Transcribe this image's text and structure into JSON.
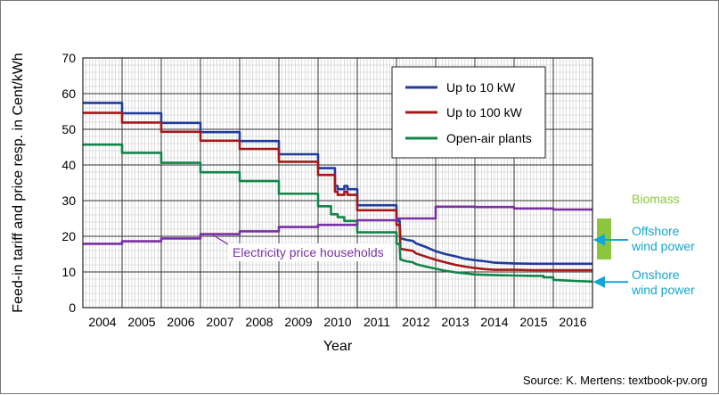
{
  "chart_data": {
    "type": "line",
    "title": "",
    "xlabel": "Year",
    "ylabel": "Feed-in tariff and price resp. in Cent/kWh",
    "ylim": [
      0,
      70
    ],
    "yticks": [
      0,
      10,
      20,
      30,
      40,
      50,
      60,
      70
    ],
    "xlim": [
      2003.5,
      2016.5
    ],
    "xtick_labels": [
      "2004",
      "2005",
      "2006",
      "2007",
      "2008",
      "2009",
      "2010",
      "2011",
      "2012",
      "2013",
      "2014",
      "2015",
      "2016"
    ],
    "grid": true,
    "legend_position": "top-right",
    "series": [
      {
        "name": "Up to 10 kW",
        "color": "#1f3b9c",
        "x": [
          2003.5,
          2004.5,
          2004.5,
          2005.5,
          2005.5,
          2006.5,
          2006.5,
          2007.5,
          2007.5,
          2008.5,
          2008.5,
          2009.5,
          2009.5,
          2009.93,
          2009.93,
          2010.0,
          2010.0,
          2010.17,
          2010.17,
          2010.25,
          2010.25,
          2010.5,
          2010.5,
          2011.5,
          2011.5,
          2011.58,
          2011.6,
          2011.75,
          2011.92,
          2012.0,
          2012.25,
          2012.5,
          2012.75,
          2013.0,
          2013.25,
          2013.5,
          2013.75,
          2014.0,
          2014.5,
          2015.0,
          2016.5
        ],
        "y": [
          57.4,
          57.4,
          54.5,
          54.5,
          51.8,
          51.8,
          49.2,
          49.2,
          46.7,
          46.7,
          43.0,
          43.0,
          39.1,
          39.1,
          34.1,
          34.1,
          33.2,
          33.2,
          34.1,
          34.1,
          33.2,
          33.2,
          28.7,
          28.7,
          24.4,
          24.4,
          19.5,
          19.0,
          18.7,
          18.0,
          17.0,
          15.8,
          15.0,
          14.4,
          13.7,
          13.3,
          13.0,
          12.6,
          12.4,
          12.3,
          12.3
        ]
      },
      {
        "name": "Up to 100 kW",
        "color": "#a31919",
        "x": [
          2003.5,
          2004.5,
          2004.5,
          2005.5,
          2005.5,
          2006.5,
          2006.5,
          2007.5,
          2007.5,
          2008.5,
          2008.5,
          2009.5,
          2009.5,
          2009.93,
          2009.93,
          2010.0,
          2010.0,
          2010.17,
          2010.17,
          2010.25,
          2010.25,
          2010.5,
          2010.5,
          2011.5,
          2011.5,
          2011.58,
          2011.6,
          2011.75,
          2011.92,
          2012.0,
          2012.25,
          2012.5,
          2012.75,
          2013.0,
          2013.25,
          2013.5,
          2013.75,
          2014.0,
          2014.5,
          2015.0,
          2016.5
        ],
        "y": [
          54.6,
          54.6,
          51.9,
          51.9,
          49.3,
          49.3,
          46.8,
          46.8,
          44.5,
          44.5,
          40.9,
          40.9,
          37.2,
          37.2,
          32.5,
          32.5,
          31.6,
          31.6,
          32.5,
          32.5,
          31.6,
          31.6,
          27.3,
          27.3,
          23.2,
          23.2,
          16.5,
          16.2,
          15.9,
          15.2,
          14.3,
          13.4,
          12.7,
          12.0,
          11.5,
          11.1,
          10.8,
          10.6,
          10.6,
          10.5,
          10.5
        ]
      },
      {
        "name": "Open-air plants",
        "color": "#12854a",
        "x": [
          2003.5,
          2004.5,
          2004.5,
          2005.5,
          2005.5,
          2006.5,
          2006.5,
          2007.5,
          2007.5,
          2008.5,
          2008.5,
          2009.5,
          2009.5,
          2009.83,
          2009.83,
          2010.0,
          2010.0,
          2010.17,
          2010.17,
          2010.5,
          2010.5,
          2011.5,
          2011.5,
          2011.58,
          2011.6,
          2011.75,
          2011.92,
          2012.0,
          2012.25,
          2012.5,
          2012.75,
          2013.0,
          2013.25,
          2013.5,
          2013.75,
          2014.0,
          2014.5,
          2015.0,
          2015.25,
          2015.25,
          2015.5,
          2015.5,
          2016.0,
          2016.5
        ],
        "y": [
          45.7,
          45.7,
          43.4,
          43.4,
          40.6,
          40.6,
          37.96,
          37.96,
          35.49,
          35.49,
          31.94,
          31.94,
          28.43,
          28.43,
          26.16,
          26.16,
          25.37,
          25.37,
          24.3,
          24.3,
          21.1,
          21.1,
          17.9,
          17.9,
          13.5,
          13.0,
          12.7,
          12.2,
          11.5,
          10.9,
          10.3,
          9.9,
          9.6,
          9.3,
          9.2,
          9.1,
          9.0,
          8.9,
          8.9,
          8.5,
          8.5,
          7.8,
          7.5,
          7.3
        ]
      },
      {
        "name": "Electricity price households",
        "color": "#7a2fa3",
        "x": [
          2003.5,
          2004.5,
          2004.5,
          2005.5,
          2005.5,
          2006.5,
          2006.5,
          2007.5,
          2007.5,
          2008.5,
          2008.5,
          2009.5,
          2009.5,
          2010.5,
          2010.5,
          2011.5,
          2011.5,
          2012.5,
          2012.5,
          2013.5,
          2013.5,
          2014.5,
          2014.5,
          2015.5,
          2015.5,
          2016.5
        ],
        "y": [
          17.9,
          17.9,
          18.6,
          18.6,
          19.4,
          19.4,
          20.6,
          20.6,
          21.4,
          21.4,
          22.6,
          22.6,
          23.2,
          23.2,
          24.5,
          24.5,
          25.0,
          25.0,
          28.3,
          28.3,
          28.2,
          28.2,
          27.8,
          27.8,
          27.5,
          27.5
        ]
      }
    ],
    "annotations": [
      {
        "id": "electricity",
        "lines": [
          "Electricity price households"
        ],
        "color": "#7a2fa3"
      },
      {
        "id": "biomass",
        "lines": [
          "Biomass"
        ],
        "color": "#8cc63f",
        "range": [
          13.5,
          25.0
        ]
      },
      {
        "id": "offshore",
        "lines": [
          "Offshore",
          "wind power"
        ],
        "color": "#13a6cf",
        "value": 19.0
      },
      {
        "id": "onshore",
        "lines": [
          "Onshore",
          "wind power"
        ],
        "color": "#13a6cf",
        "value": 7.2
      }
    ],
    "source": "Source: K. Mertens: textbook-pv.org"
  }
}
